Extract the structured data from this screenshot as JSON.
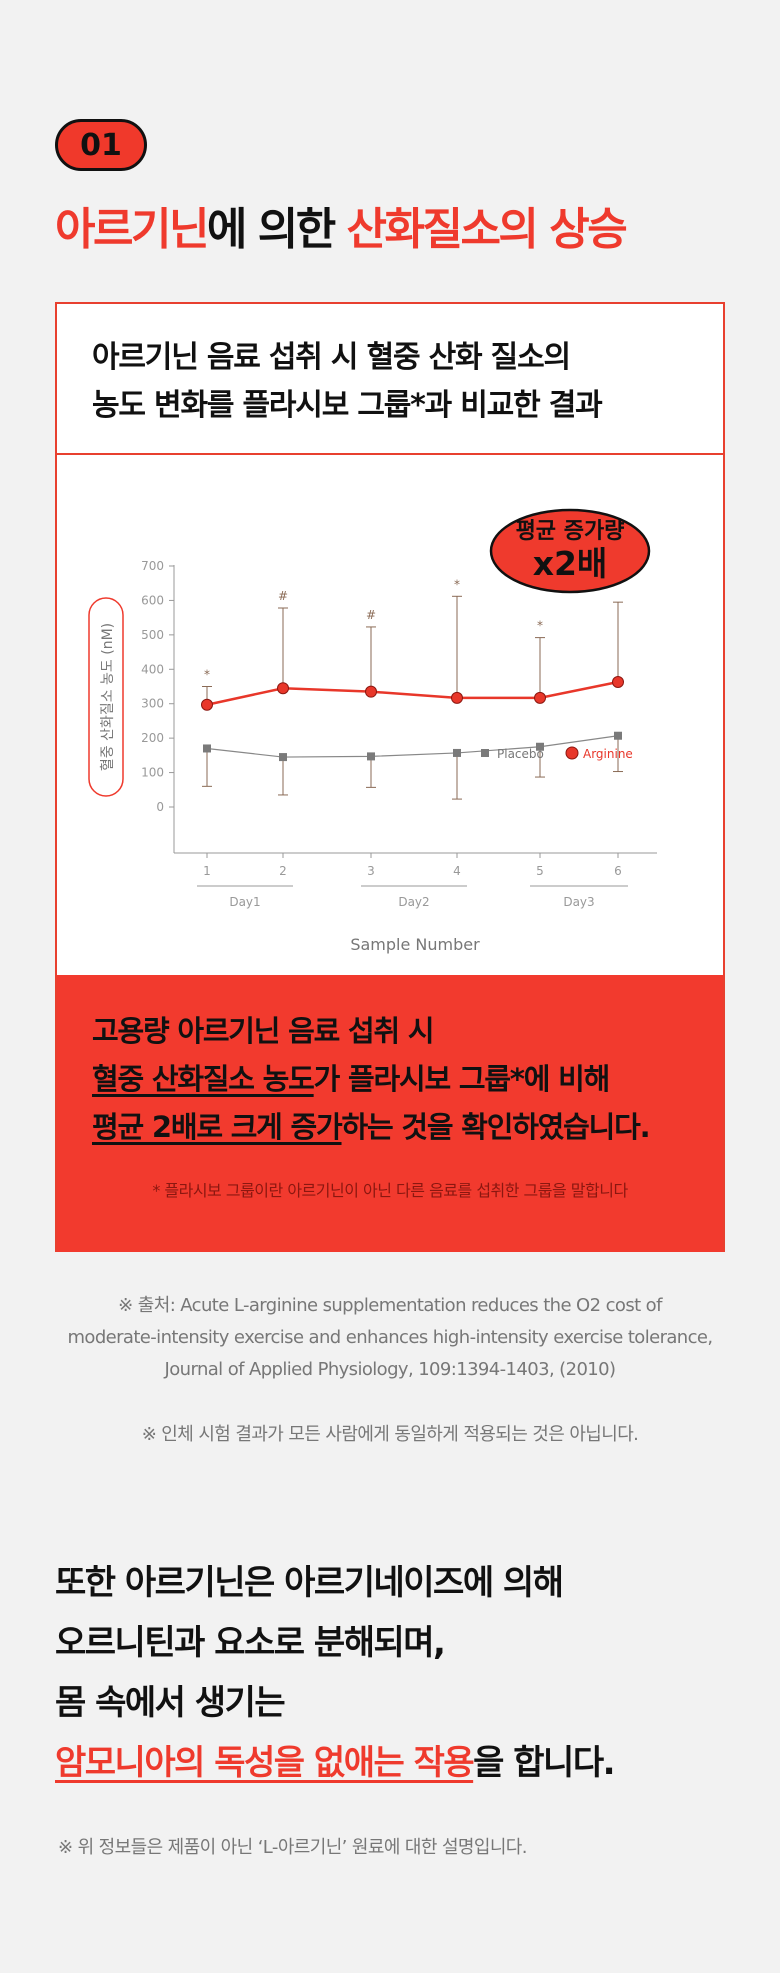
{
  "section": {
    "badge": "01",
    "title_part1": "아르기닌",
    "title_part2": "에 의한 ",
    "title_part3": "산화질소의 상승"
  },
  "card": {
    "heading_line1": "아르기닌 음료 섭취 시 혈중 산화 질소의",
    "heading_line2": "농도 변화를 플라시보 그룹*과 비교한 결과",
    "callout_line1": "평균 증가량",
    "callout_line2": "x2배",
    "summary": {
      "line1": "고용량 아르기닌 음료 섭취 시",
      "line2_u": "혈중 산화질소 농도",
      "line2_rest": "가 플라시보 그룹*에 비해",
      "line3_u": "평균 2배로 크게 증가",
      "line3_rest": "하는 것을 확인하였습니다.",
      "note": "* 플라시보 그룹이란 아르기닌이 아닌 다른 음료를 섭취한 그룹을 말합니다"
    }
  },
  "chart_data": {
    "type": "line",
    "ylabel": "혈중 산화질소 농도 (nM)",
    "xlabel": "Sample Number",
    "ylim": [
      -70,
      700
    ],
    "yticks": [
      0,
      100,
      200,
      300,
      400,
      500,
      600,
      700
    ],
    "x": [
      1,
      2,
      3,
      4,
      5,
      6
    ],
    "x_groups": [
      {
        "label": "Day1",
        "from": 1,
        "to": 2
      },
      {
        "label": "Day2",
        "from": 3,
        "to": 4
      },
      {
        "label": "Day3",
        "from": 5,
        "to": 6
      }
    ],
    "legend_position": "bottom-right",
    "series": [
      {
        "name": "Placebo",
        "color": "#888888",
        "marker": "square",
        "values": [
          170,
          145,
          147,
          157,
          175,
          207
        ],
        "err_low": [
          60,
          35,
          57,
          23,
          87,
          103
        ],
        "err_high": [
          170,
          145,
          147,
          157,
          175,
          207
        ]
      },
      {
        "name": "Arginine",
        "color": "#e8372a",
        "marker": "circle",
        "values": [
          297,
          345,
          335,
          317,
          317,
          363
        ],
        "err_low": [
          297,
          345,
          335,
          317,
          317,
          363
        ],
        "err_high": [
          350,
          578,
          523,
          612,
          492,
          595
        ]
      }
    ],
    "annotations": [
      {
        "x": 1,
        "text": "*"
      },
      {
        "x": 2,
        "text": "#"
      },
      {
        "x": 3,
        "text": "#"
      },
      {
        "x": 4,
        "text": "*"
      },
      {
        "x": 5,
        "text": "*"
      }
    ]
  },
  "source": {
    "line1": "※ 출처: Acute L-arginine supplementation reduces the O2 cost of",
    "line2": "moderate-intensity exercise and enhances high-intensity exercise tolerance,",
    "line3": "Journal of Applied Physiology, 109:1394-1403, (2010)"
  },
  "disclaimer": "※ 인체 시험 결과가 모든 사람에게 동일하게 적용되는 것은 아닙니다.",
  "body": {
    "line1": "또한 아르기닌은 아르기네이즈에 의해",
    "line2": "오르니틴과 요소로 분해되며,",
    "line3": "몸 속에서 생기는",
    "line4_u": "암모니아의 독성을 없애는 작용",
    "line4_rest": "을 합니다."
  },
  "footnote": "※ 위 정보들은 제품이 아닌 ‘L-아르기닌’ 원료에 대한 설명입니다.",
  "colors": {
    "accent": "#ef3a2d",
    "background": "#f2f2f2"
  }
}
